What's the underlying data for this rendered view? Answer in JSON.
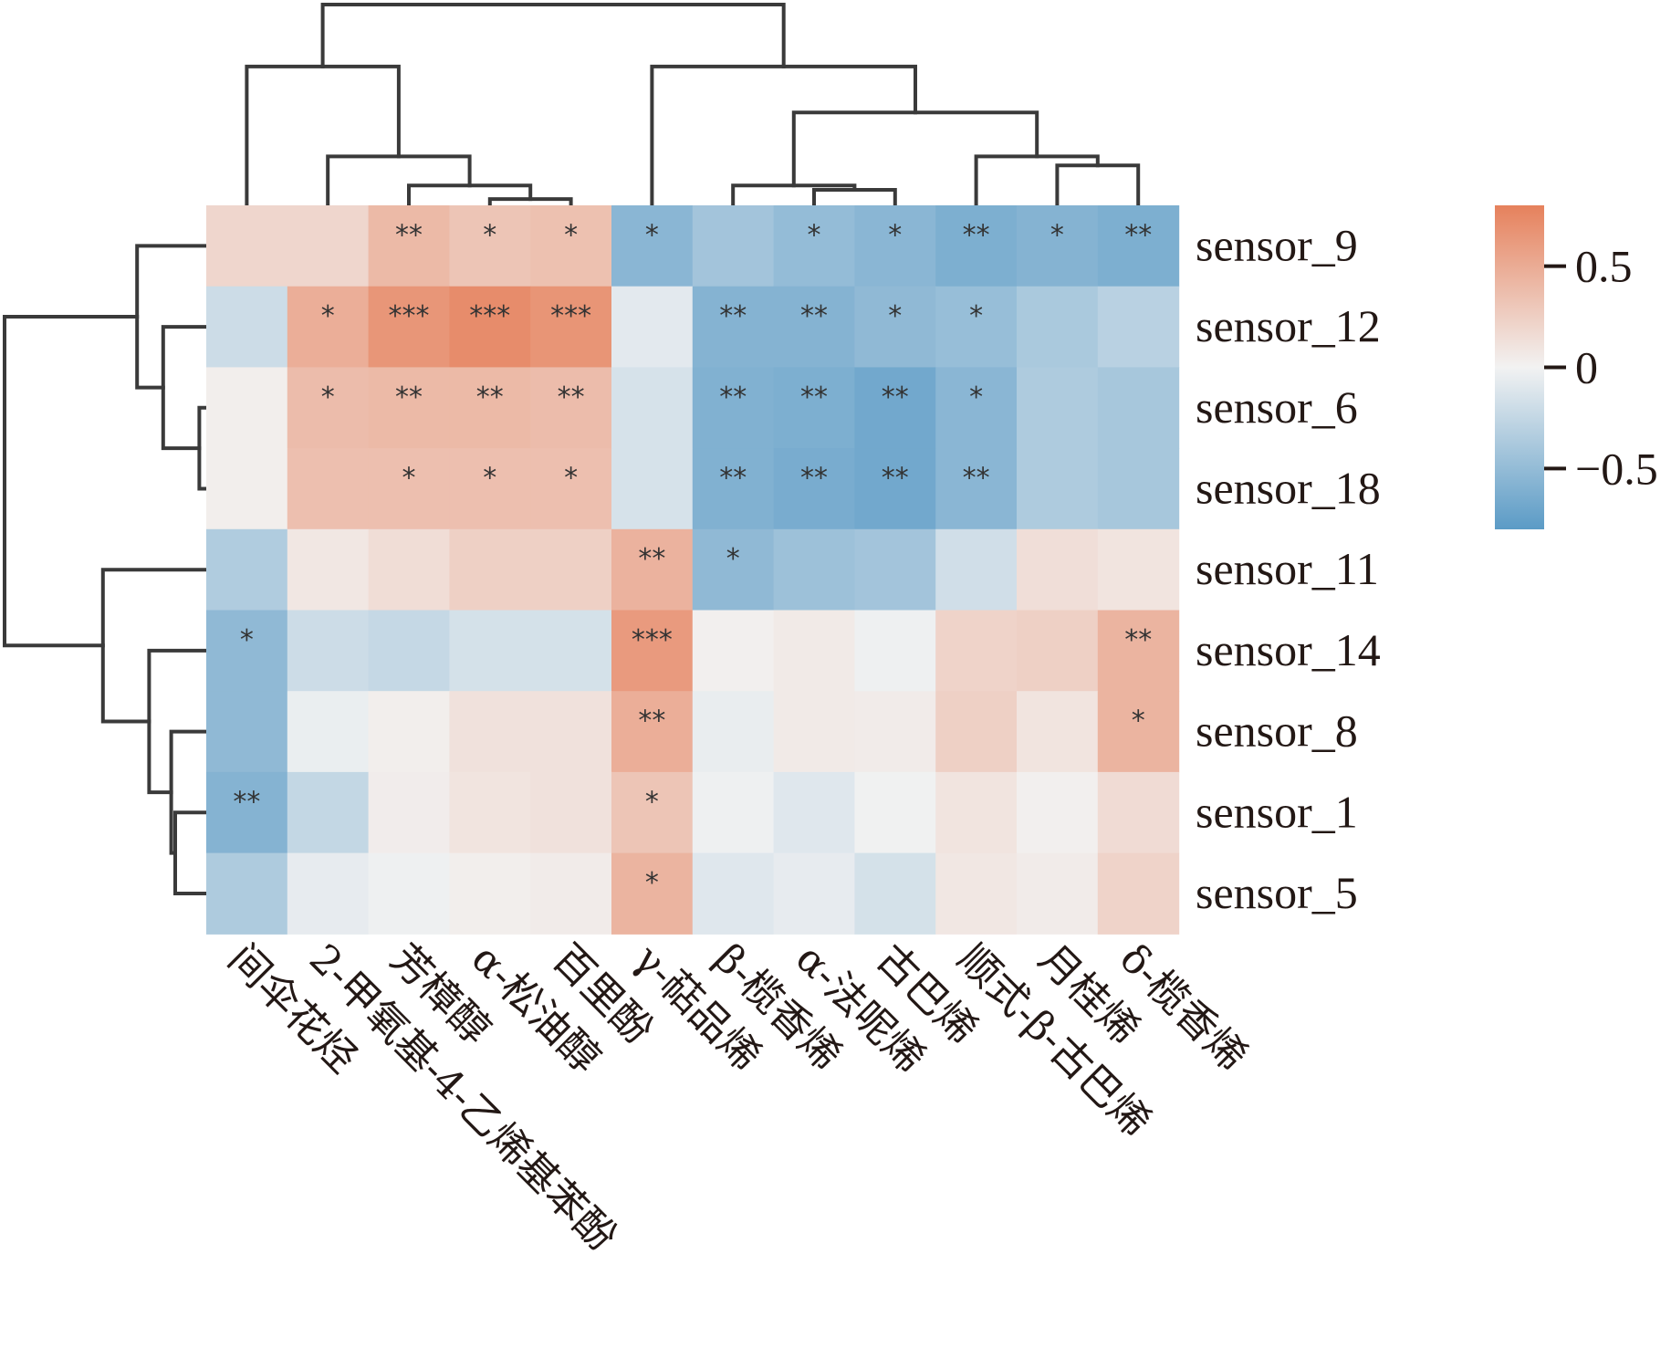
{
  "chart_data": {
    "type": "heatmap",
    "title": "",
    "subtitle": "",
    "xlabel": "",
    "ylabel": "",
    "rows": [
      "sensor_9",
      "sensor_12",
      "sensor_6",
      "sensor_18",
      "sensor_11",
      "sensor_14",
      "sensor_8",
      "sensor_1",
      "sensor_5"
    ],
    "columns": [
      "间伞花烃",
      "2-甲氧基-4-乙烯基苯酚",
      "芳樟醇",
      "α-松油醇",
      "百里酚",
      "γ-萜品烯",
      "β-榄香烯",
      "α-法呢烯",
      "古巴烯",
      "顺式-β-古巴烯",
      "月桂烯",
      "δ-榄香烯"
    ],
    "values": [
      [
        0.2,
        0.2,
        0.4,
        0.32,
        0.35,
        -0.55,
        -0.42,
        -0.5,
        -0.55,
        -0.62,
        -0.58,
        -0.62
      ],
      [
        -0.2,
        0.48,
        0.65,
        0.72,
        0.66,
        -0.08,
        -0.58,
        -0.58,
        -0.52,
        -0.48,
        -0.38,
        -0.3
      ],
      [
        0.03,
        0.38,
        0.4,
        0.4,
        0.38,
        -0.15,
        -0.6,
        -0.62,
        -0.68,
        -0.55,
        -0.36,
        -0.4
      ],
      [
        0.03,
        0.36,
        0.36,
        0.36,
        0.36,
        -0.15,
        -0.6,
        -0.64,
        -0.68,
        -0.55,
        -0.36,
        -0.4
      ],
      [
        -0.35,
        0.08,
        0.15,
        0.24,
        0.24,
        0.45,
        -0.52,
        -0.45,
        -0.42,
        -0.18,
        0.14,
        0.1
      ],
      [
        -0.52,
        -0.2,
        -0.24,
        -0.16,
        -0.16,
        0.62,
        0.02,
        0.06,
        -0.02,
        0.22,
        0.24,
        0.44
      ],
      [
        -0.52,
        -0.04,
        0.03,
        0.12,
        0.12,
        0.48,
        -0.05,
        0.06,
        0.05,
        0.24,
        0.1,
        0.44
      ],
      [
        -0.58,
        -0.25,
        0.04,
        0.1,
        0.12,
        0.32,
        -0.02,
        -0.1,
        -0.01,
        0.1,
        0.02,
        0.16
      ],
      [
        -0.36,
        -0.06,
        -0.02,
        0.03,
        0.05,
        0.44,
        -0.1,
        -0.06,
        -0.16,
        0.08,
        0.05,
        0.22
      ]
    ],
    "significance": [
      [
        "",
        "",
        "**",
        "*",
        "*",
        "*",
        "",
        "*",
        "*",
        "**",
        "*",
        "**"
      ],
      [
        "",
        "*",
        "***",
        "***",
        "***",
        "",
        "**",
        "**",
        "*",
        "*",
        "",
        ""
      ],
      [
        "",
        "*",
        "**",
        "**",
        "**",
        "",
        "**",
        "**",
        "**",
        "*",
        "",
        ""
      ],
      [
        "",
        "",
        "*",
        "*",
        "*",
        "",
        "**",
        "**",
        "**",
        "**",
        "",
        ""
      ],
      [
        "",
        "",
        "",
        "",
        "",
        "**",
        "*",
        "",
        "",
        "",
        "",
        ""
      ],
      [
        "*",
        "",
        "",
        "",
        "",
        "***",
        "",
        "",
        "",
        "",
        "",
        "**"
      ],
      [
        "",
        "",
        "",
        "",
        "",
        "**",
        "",
        "",
        "",
        "",
        "",
        "*"
      ],
      [
        "**",
        "",
        "",
        "",
        "",
        "*",
        "",
        "",
        "",
        "",
        "",
        ""
      ],
      [
        "",
        "",
        "",
        "",
        "",
        "*",
        "",
        "",
        "",
        "",
        "",
        ""
      ]
    ],
    "colorbar": {
      "vmin": -0.8,
      "vmax": 0.8,
      "ticks": [
        0.5,
        0,
        -0.5
      ],
      "tick_labels": [
        "0.5",
        "0",
        "−0.5"
      ],
      "colors": {
        "negative": "#5B9BC6",
        "center": "#F2F2F2",
        "positive": "#E6815C"
      },
      "placement": "right"
    },
    "row_dendrogram": {
      "tree": {
        "h": 10.0,
        "c": [
          {
            "h": 3.4,
            "c": [
              {
                "leaf": 0
              },
              {
                "h": 2.1,
                "c": [
                  {
                    "leaf": 1
                  },
                  {
                    "h": 0.3,
                    "c": [
                      {
                        "leaf": 2
                      },
                      {
                        "leaf": 3
                      }
                    ]
                  }
                ]
              }
            ]
          },
          {
            "h": 5.1,
            "c": [
              {
                "leaf": 4
              },
              {
                "h": 2.8,
                "c": [
                  {
                    "leaf": 5
                  },
                  {
                    "h": 1.7,
                    "c": [
                      {
                        "leaf": 6
                      },
                      {
                        "h": 1.5,
                        "c": [
                          {
                            "leaf": 7
                          },
                          {
                            "leaf": 8
                          }
                        ]
                      }
                    ]
                  }
                ]
              }
            ]
          }
        ]
      },
      "placement": "left"
    },
    "col_dendrogram": {
      "tree": {
        "h": 10.0,
        "c": [
          {
            "h": 6.9,
            "c": [
              {
                "leaf": 0
              },
              {
                "h": 2.4,
                "c": [
                  {
                    "leaf": 1
                  },
                  {
                    "h": 0.95,
                    "c": [
                      {
                        "leaf": 2
                      },
                      {
                        "h": 0.27,
                        "c": [
                          {
                            "leaf": 3
                          },
                          {
                            "leaf": 4
                          }
                        ]
                      }
                    ]
                  }
                ]
              }
            ]
          },
          {
            "h": 6.9,
            "c": [
              {
                "leaf": 5
              },
              {
                "h": 4.6,
                "c": [
                  {
                    "h": 0.95,
                    "c": [
                      {
                        "leaf": 6
                      },
                      {
                        "h": 0.73,
                        "c": [
                          {
                            "leaf": 7
                          },
                          {
                            "leaf": 8
                          }
                        ]
                      }
                    ]
                  },
                  {
                    "h": 2.4,
                    "c": [
                      {
                        "leaf": 9
                      },
                      {
                        "h": 1.95,
                        "c": [
                          {
                            "leaf": 10
                          },
                          {
                            "leaf": 11
                          }
                        ]
                      }
                    ]
                  }
                ]
              }
            ]
          }
        ]
      },
      "placement": "top"
    }
  }
}
